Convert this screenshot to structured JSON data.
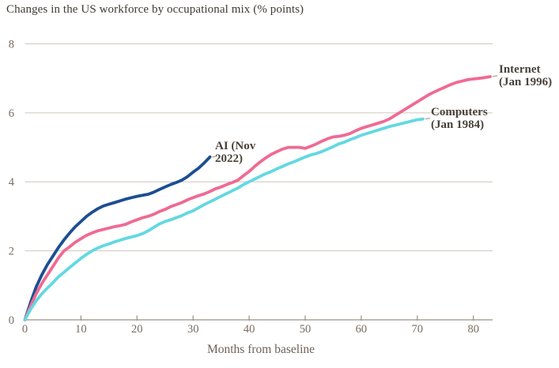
{
  "title": "Changes in the US workforce by occupational mix (% points)",
  "colors": {
    "background": "#ffffff",
    "title_text": "#403a34",
    "series_label_text": "#4a423a",
    "axis_text": "#786b60",
    "gridline": "#cfc6bb",
    "axis_line": "#9c9083",
    "connector": "#b3a99d",
    "ai_line": "#1c4e92",
    "internet_line": "#ef6a93",
    "computers_line": "#63d8e1"
  },
  "x_axis_title": "Months from baseline",
  "labels": {
    "ai": "AI (Nov 2022)",
    "internet": "Internet (Jan 1996)",
    "computers": "Computers (Jan 1984)"
  },
  "chart_data": {
    "type": "line",
    "title": "Changes in the US workforce by occupational mix (% points)",
    "xlabel": "Months from baseline",
    "ylabel": "",
    "xlim": [
      0,
      83
    ],
    "ylim": [
      0,
      8
    ],
    "x_ticks": [
      0,
      10,
      20,
      30,
      40,
      50,
      60,
      70,
      80
    ],
    "y_ticks": [
      0,
      2,
      4,
      6,
      8
    ],
    "grid": "horizontal-only",
    "legend_position": "end-of-line-labels",
    "x_unit": "months from baseline",
    "series": [
      {
        "name": "AI (Nov 2022)",
        "color": "#1c4e92",
        "x_start": 0,
        "x_step": 1,
        "values": [
          0,
          0.5,
          0.95,
          1.3,
          1.6,
          1.85,
          2.1,
          2.32,
          2.52,
          2.7,
          2.85,
          3.0,
          3.12,
          3.22,
          3.3,
          3.35,
          3.4,
          3.45,
          3.5,
          3.54,
          3.58,
          3.61,
          3.64,
          3.7,
          3.78,
          3.85,
          3.92,
          3.98,
          4.05,
          4.15,
          4.28,
          4.4,
          4.55,
          4.72
        ]
      },
      {
        "name": "Internet (Jan 1996)",
        "color": "#ef6a93",
        "x_start": 0,
        "x_step": 1,
        "values": [
          0,
          0.4,
          0.75,
          1.05,
          1.3,
          1.55,
          1.8,
          2.0,
          2.12,
          2.25,
          2.35,
          2.45,
          2.52,
          2.58,
          2.62,
          2.66,
          2.7,
          2.73,
          2.77,
          2.84,
          2.9,
          2.96,
          3.0,
          3.06,
          3.14,
          3.2,
          3.28,
          3.34,
          3.4,
          3.48,
          3.54,
          3.6,
          3.65,
          3.72,
          3.8,
          3.85,
          3.92,
          3.98,
          4.05,
          4.18,
          4.3,
          4.45,
          4.58,
          4.7,
          4.8,
          4.88,
          4.95,
          5.0,
          5.0,
          5.0,
          4.97,
          5.03,
          5.1,
          5.18,
          5.25,
          5.3,
          5.32,
          5.35,
          5.4,
          5.48,
          5.55,
          5.6,
          5.65,
          5.7,
          5.75,
          5.82,
          5.92,
          6.02,
          6.12,
          6.22,
          6.32,
          6.42,
          6.52,
          6.6,
          6.68,
          6.75,
          6.82,
          6.88,
          6.92,
          6.96,
          6.98,
          7.0,
          7.02,
          7.05
        ]
      },
      {
        "name": "Computers (Jan 1984)",
        "color": "#63d8e1",
        "x_start": 0,
        "x_step": 1,
        "values": [
          0,
          0.3,
          0.55,
          0.75,
          0.92,
          1.08,
          1.25,
          1.38,
          1.52,
          1.65,
          1.78,
          1.9,
          2.0,
          2.08,
          2.15,
          2.2,
          2.26,
          2.31,
          2.36,
          2.4,
          2.44,
          2.5,
          2.58,
          2.68,
          2.78,
          2.85,
          2.9,
          2.96,
          3.02,
          3.1,
          3.16,
          3.25,
          3.34,
          3.42,
          3.5,
          3.58,
          3.66,
          3.74,
          3.82,
          3.92,
          4.0,
          4.08,
          4.16,
          4.24,
          4.3,
          4.38,
          4.45,
          4.52,
          4.58,
          4.65,
          4.72,
          4.78,
          4.82,
          4.88,
          4.95,
          5.02,
          5.1,
          5.15,
          5.22,
          5.28,
          5.35,
          5.4,
          5.45,
          5.5,
          5.55,
          5.6,
          5.64,
          5.68,
          5.72,
          5.76,
          5.8,
          5.82
        ]
      }
    ]
  }
}
